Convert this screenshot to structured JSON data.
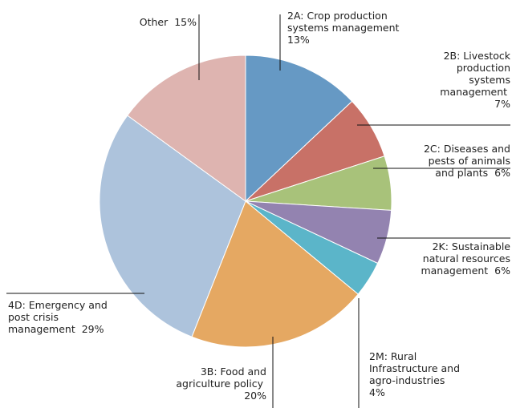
{
  "chart_data": {
    "type": "pie",
    "categories": [
      "2A: Crop production systems management",
      "2B: Livestock production systems management",
      "2C: Diseases and pests of animals and plants",
      "2K: Sustainable natural resources management",
      "2M: Rural Infrastructure and agro-industries",
      "3B: Food and agriculture policy",
      "4D: Emergency and post crisis management",
      "Other"
    ],
    "values": [
      13,
      7,
      6,
      6,
      4,
      20,
      29,
      15
    ],
    "value_labels": [
      "13%",
      "7%",
      "6%",
      "6%",
      "4%",
      "20%",
      "29%",
      "15%"
    ],
    "colors": [
      "#6699c4",
      "#c87167",
      "#a8c27a",
      "#9383b0",
      "#5bb5c9",
      "#e5a862",
      "#adc3dc",
      "#deb4b0"
    ]
  }
}
